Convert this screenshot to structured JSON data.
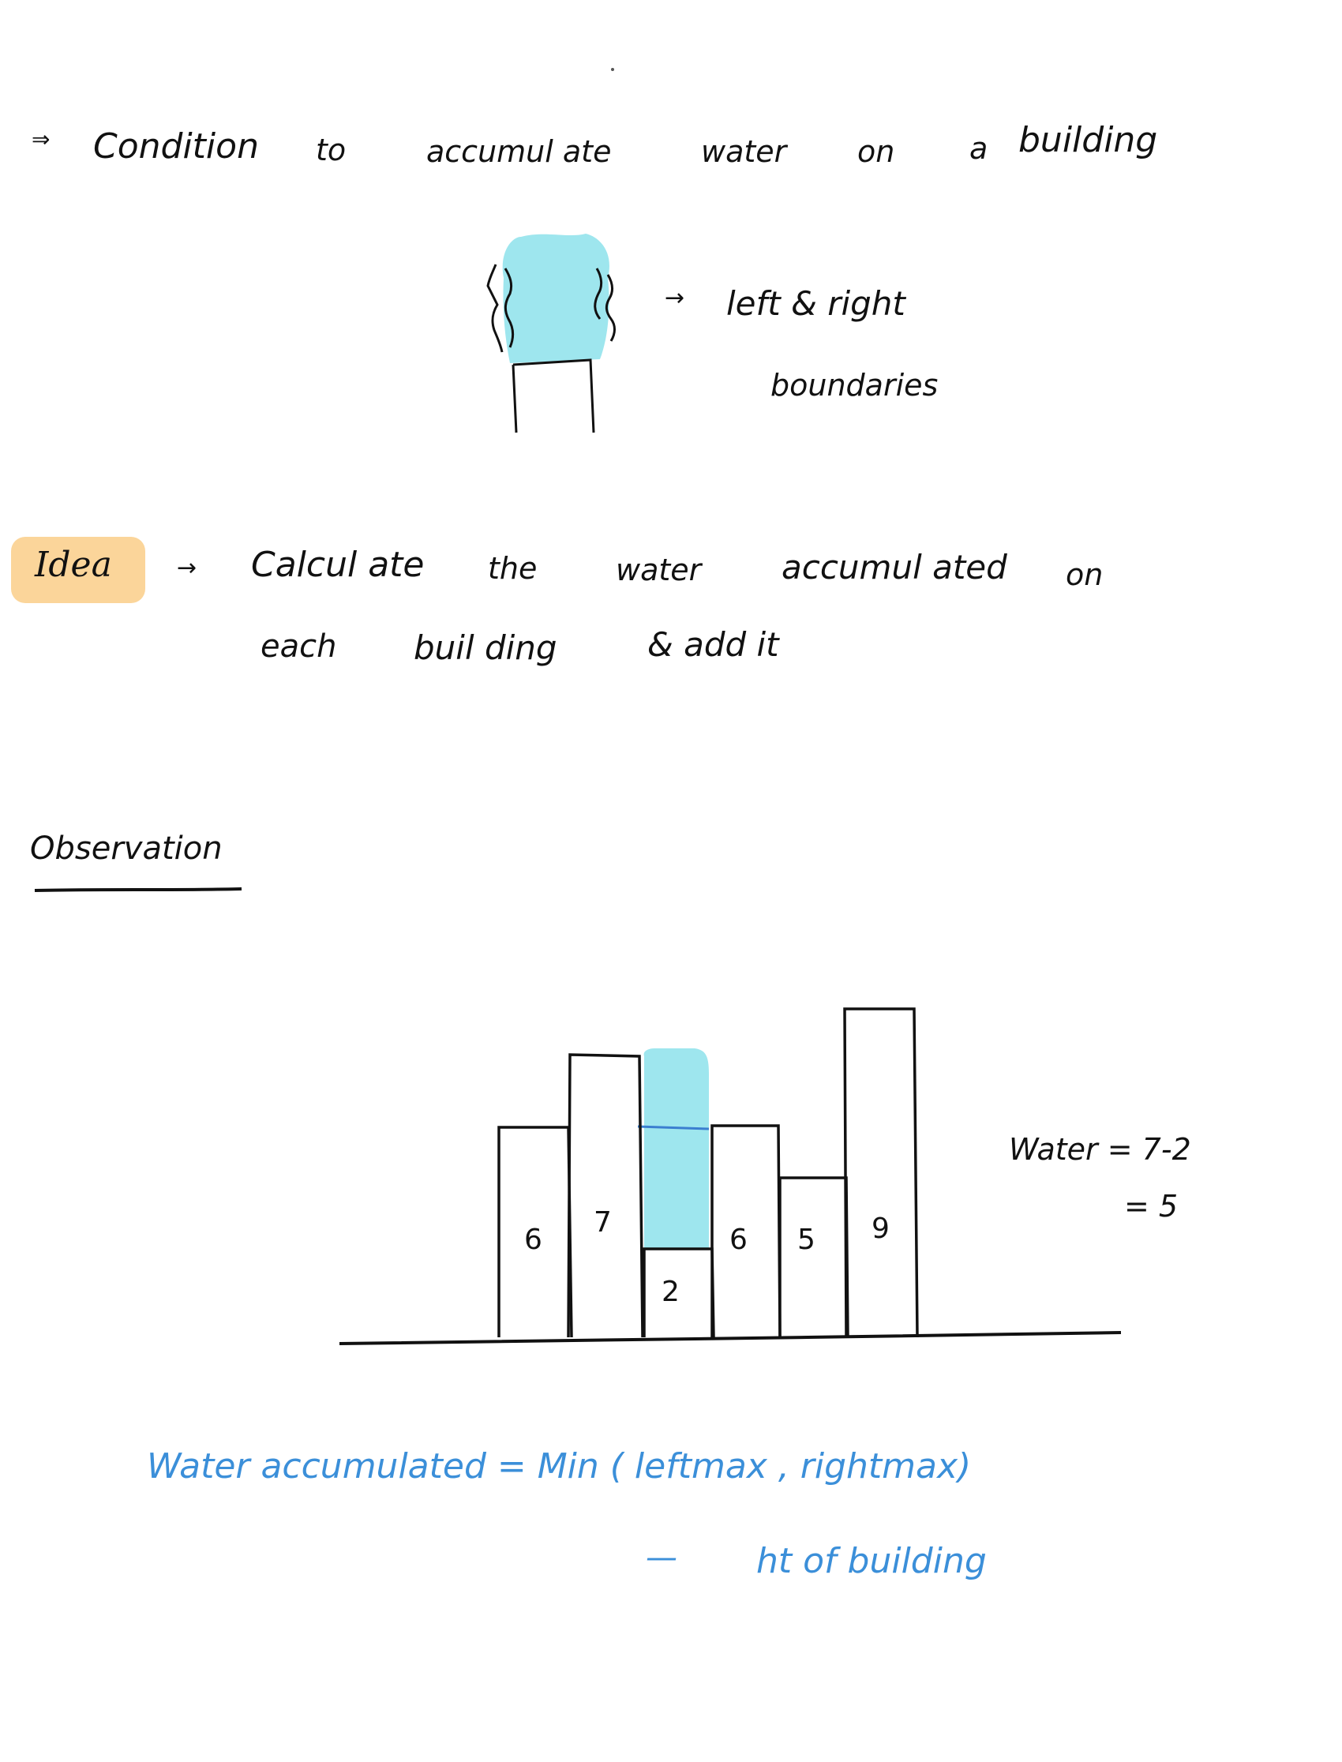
{
  "line1": {
    "arrow": "⇒",
    "w1": "Condition",
    "w2": "to",
    "w3": "accumul ate",
    "w4": "water",
    "w5": "on",
    "w6": "a",
    "w7": "building"
  },
  "boundary_note": {
    "arrow": "→",
    "line1": "left & right",
    "line2": "boundaries"
  },
  "idea": {
    "label": "Idea",
    "arrow": "→",
    "w1": "Calcul ate",
    "w2": "the",
    "w3": "water",
    "w4": "accumul ated",
    "w5": "on",
    "w6": "each",
    "w7": "buil ding",
    "w8": "& add it",
    "highlight_color": "#fbd59a"
  },
  "observation": {
    "heading": "Observation"
  },
  "buildings": {
    "heights": [
      "6",
      "7",
      "2",
      "6",
      "5",
      "9"
    ],
    "water_color": "#9ee6ee",
    "water_line_color": "#3b7fd0"
  },
  "water_calc": {
    "line1": "Water = 7-2",
    "line2": "= 5"
  },
  "formula": {
    "line1": "Water accumulated = Min ( leftmax , rightmax)",
    "dash": "—",
    "line2": "ht of building",
    "color": "#3b8fd9"
  }
}
